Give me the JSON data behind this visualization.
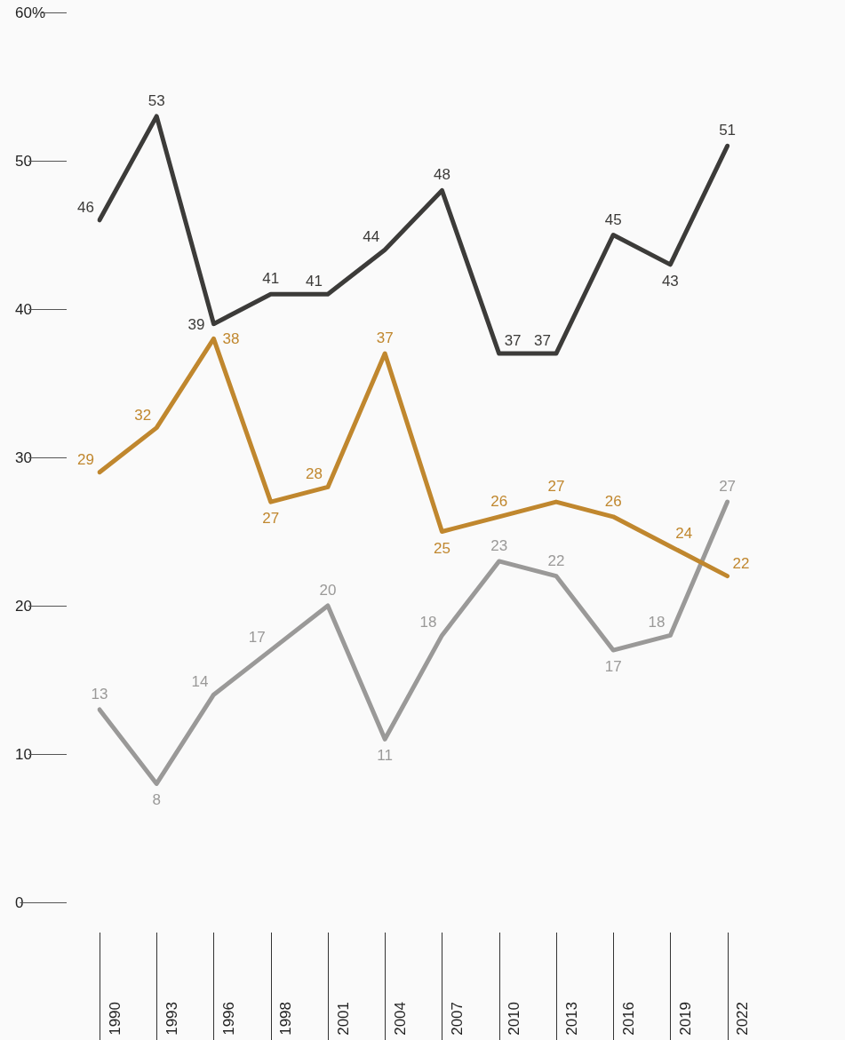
{
  "chart_data": {
    "type": "line",
    "categories": [
      "1990",
      "1993",
      "1996",
      "1998",
      "2001",
      "2004",
      "2007",
      "2010",
      "2013",
      "2016",
      "2019",
      "2022"
    ],
    "series": [
      {
        "color": "#3c3b39",
        "values": [
          46,
          53,
          39,
          41,
          41,
          44,
          48,
          37,
          37,
          45,
          43,
          51
        ]
      },
      {
        "color": "#c0872e",
        "values": [
          29,
          32,
          38,
          27,
          28,
          37,
          25,
          26,
          27,
          26,
          24,
          22
        ]
      },
      {
        "color": "#9a9998",
        "values": [
          13,
          8,
          14,
          17,
          20,
          11,
          18,
          23,
          22,
          17,
          18,
          27
        ]
      }
    ],
    "ylim": [
      0,
      60
    ],
    "yticks": [
      0,
      10,
      20,
      30,
      40,
      50,
      {
        "value": 60,
        "label": "60%"
      }
    ],
    "data_labels": true,
    "marker": "none",
    "line_style": "solid"
  }
}
